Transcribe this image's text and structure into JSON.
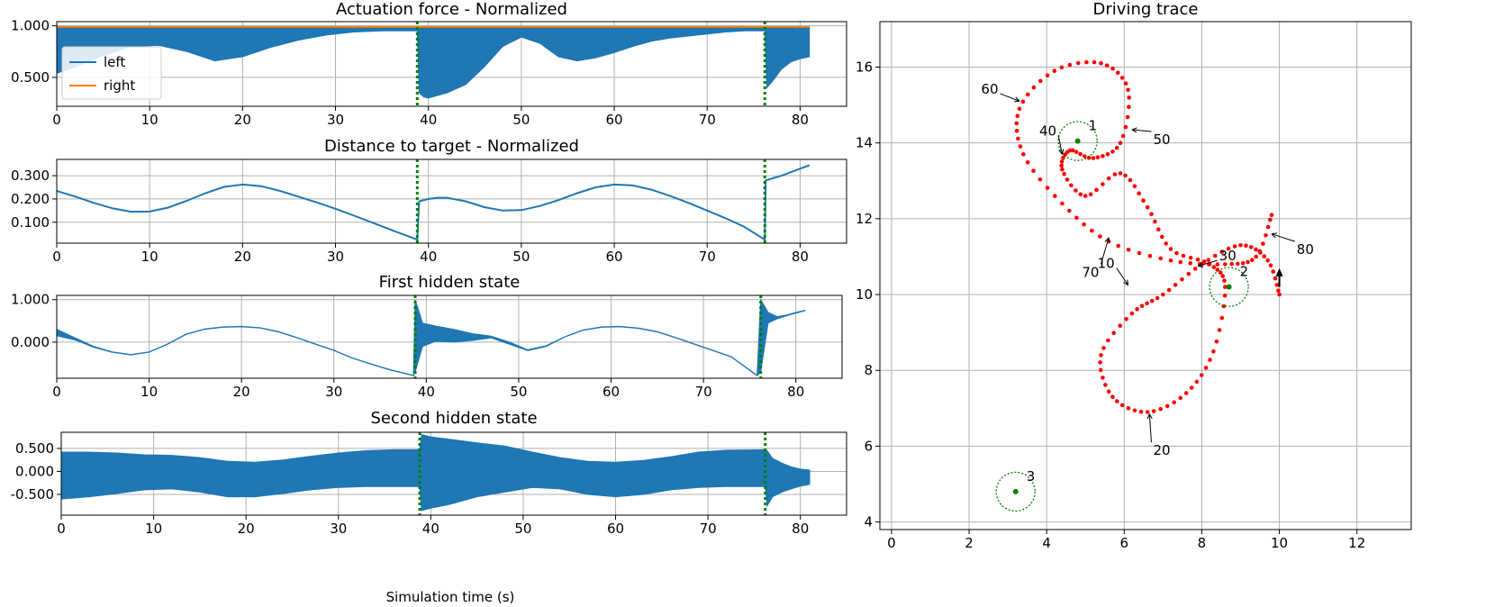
{
  "colors": {
    "left": "#1f77b4",
    "right": "#ff7f0e",
    "phase": "#008000",
    "trace": "#ff0000",
    "target": "#008000"
  },
  "xlabel_time": "Simulation time (s)",
  "chart_data": [
    {
      "type": "line",
      "title": "Actuation force - Normalized",
      "xlim": [
        0,
        85
      ],
      "ylim": [
        0.22,
        1.04
      ],
      "xticks": [
        0,
        10,
        20,
        30,
        40,
        50,
        60,
        70,
        80
      ],
      "yticks": [
        0.5,
        1.0
      ],
      "ytick_labels": [
        "0.500",
        "1.000"
      ],
      "grid": true,
      "legend_placement": "left",
      "phase_lines": [
        38.8,
        76.2
      ],
      "series": [
        {
          "name": "left",
          "kind": "band",
          "x": [
            0,
            2,
            5,
            8,
            11,
            14,
            17,
            20,
            23,
            26,
            29,
            32,
            35,
            38.8,
            39.01,
            39.5,
            40,
            42,
            44,
            46,
            48,
            50,
            52,
            54,
            56,
            58,
            60,
            62,
            64,
            66,
            68,
            70,
            72,
            74,
            76.2,
            76.41,
            77,
            78,
            79,
            80,
            81
          ],
          "low": [
            0.54,
            0.6,
            0.71,
            0.8,
            0.81,
            0.75,
            0.66,
            0.7,
            0.79,
            0.86,
            0.91,
            0.94,
            0.95,
            0.95,
            0.35,
            0.31,
            0.3,
            0.35,
            0.43,
            0.6,
            0.8,
            0.89,
            0.83,
            0.7,
            0.66,
            0.69,
            0.74,
            0.8,
            0.85,
            0.88,
            0.9,
            0.92,
            0.94,
            0.95,
            0.95,
            0.4,
            0.46,
            0.58,
            0.65,
            0.68,
            0.7
          ],
          "high": [
            0.99,
            0.99,
            0.99,
            0.99,
            0.99,
            0.99,
            0.99,
            0.99,
            0.99,
            0.99,
            0.99,
            0.99,
            0.99,
            0.99,
            0.99,
            0.99,
            0.99,
            0.99,
            0.99,
            0.99,
            0.99,
            0.99,
            0.99,
            0.99,
            0.99,
            0.99,
            0.99,
            0.99,
            0.99,
            0.99,
            0.99,
            0.99,
            0.99,
            0.99,
            0.99,
            0.99,
            0.99,
            0.99,
            0.99,
            0.99,
            0.99
          ]
        },
        {
          "name": "right",
          "x": [
            0,
            81
          ],
          "values": [
            0.99,
            0.99
          ]
        }
      ]
    },
    {
      "type": "line",
      "title": "Distance to target - Normalized",
      "xlim": [
        0,
        85
      ],
      "ylim": [
        0.01,
        0.37
      ],
      "xticks": [
        0,
        10,
        20,
        30,
        40,
        50,
        60,
        70,
        80
      ],
      "yticks": [
        0.1,
        0.2,
        0.3
      ],
      "ytick_labels": [
        "0.100",
        "0.200",
        "0.300"
      ],
      "grid": true,
      "phase_lines": [
        38.8,
        76.2
      ],
      "series": [
        {
          "x": [
            0,
            2,
            4,
            6,
            8,
            10,
            12,
            14,
            16,
            18,
            20,
            22,
            24,
            26,
            28,
            30,
            32,
            34,
            36,
            38.8,
            39,
            40,
            41,
            42,
            44,
            46,
            48,
            50,
            52,
            54,
            56,
            58,
            60,
            62,
            64,
            66,
            68,
            70,
            72,
            74,
            76.2,
            76.3,
            78,
            80,
            81
          ],
          "values": [
            0.235,
            0.21,
            0.183,
            0.16,
            0.145,
            0.146,
            0.163,
            0.192,
            0.225,
            0.252,
            0.262,
            0.255,
            0.235,
            0.21,
            0.185,
            0.158,
            0.128,
            0.098,
            0.067,
            0.025,
            0.19,
            0.2,
            0.205,
            0.205,
            0.19,
            0.165,
            0.15,
            0.152,
            0.17,
            0.195,
            0.225,
            0.25,
            0.262,
            0.258,
            0.24,
            0.213,
            0.183,
            0.15,
            0.117,
            0.08,
            0.025,
            0.28,
            0.3,
            0.33,
            0.345
          ]
        }
      ]
    },
    {
      "type": "line",
      "title": "First hidden state",
      "xlim": [
        0,
        85
      ],
      "ylim": [
        -0.85,
        1.1
      ],
      "xticks": [
        0,
        10,
        20,
        30,
        40,
        50,
        60,
        70,
        80
      ],
      "yticks": [
        0.0,
        1.0
      ],
      "ytick_labels": [
        "0.000",
        "1.000"
      ],
      "grid": true,
      "phase_lines": [
        38.8,
        76.2
      ],
      "series": [
        {
          "kind": "band",
          "x": [
            0,
            2,
            4,
            6,
            8,
            10,
            12,
            14,
            16,
            18,
            20,
            22,
            24,
            26,
            28,
            30,
            32,
            34,
            36,
            38.6,
            38.8,
            39.6,
            41,
            43,
            45,
            47,
            49,
            51,
            53,
            55,
            57,
            59,
            61,
            63,
            65,
            67,
            69,
            71,
            73,
            75.8,
            76.2,
            77,
            78,
            79,
            80,
            81
          ],
          "low": [
            0.15,
            0.05,
            -0.12,
            -0.24,
            -0.3,
            -0.24,
            -0.05,
            0.18,
            0.3,
            0.35,
            0.36,
            0.33,
            0.24,
            0.1,
            -0.05,
            -0.2,
            -0.38,
            -0.52,
            -0.65,
            -0.79,
            -0.7,
            -0.1,
            0.02,
            0.0,
            0.04,
            0.1,
            -0.05,
            -0.2,
            -0.1,
            0.12,
            0.28,
            0.35,
            0.36,
            0.32,
            0.24,
            0.1,
            -0.05,
            -0.2,
            -0.35,
            -0.79,
            -0.7,
            0.45,
            0.55,
            0.62,
            0.68,
            0.74
          ],
          "high": [
            0.3,
            0.1,
            -0.1,
            -0.23,
            -0.29,
            -0.23,
            -0.04,
            0.19,
            0.31,
            0.36,
            0.37,
            0.34,
            0.25,
            0.11,
            -0.04,
            -0.19,
            -0.37,
            -0.51,
            -0.64,
            -0.78,
            1.0,
            0.45,
            0.38,
            0.3,
            0.2,
            0.14,
            0.0,
            -0.18,
            -0.08,
            0.13,
            0.29,
            0.36,
            0.37,
            0.33,
            0.25,
            0.11,
            -0.04,
            -0.19,
            -0.34,
            -0.78,
            1.0,
            0.7,
            0.6,
            0.64,
            0.7,
            0.75
          ]
        }
      ]
    },
    {
      "type": "line",
      "title": "Second hidden state",
      "xlabel": "Simulation time (s)",
      "xlim": [
        0,
        85
      ],
      "ylim": [
        -0.95,
        0.85
      ],
      "xticks": [
        0,
        10,
        20,
        30,
        40,
        50,
        60,
        70,
        80
      ],
      "yticks": [
        -0.5,
        0.0,
        0.5
      ],
      "ytick_labels": [
        "-0.500",
        "0.000",
        "0.500"
      ],
      "grid": true,
      "phase_lines": [
        38.8,
        76.2
      ],
      "series": [
        {
          "kind": "band",
          "x": [
            0,
            3,
            6,
            9,
            12,
            15,
            18,
            21,
            24,
            27,
            30,
            33,
            36,
            38.8,
            39,
            40,
            42,
            45,
            48,
            51,
            54,
            57,
            60,
            63,
            66,
            69,
            72,
            76.2,
            76.4,
            77,
            78,
            79,
            80,
            81
          ],
          "low": [
            -0.6,
            -0.55,
            -0.48,
            -0.4,
            -0.38,
            -0.45,
            -0.55,
            -0.55,
            -0.48,
            -0.4,
            -0.35,
            -0.33,
            -0.33,
            -0.33,
            -0.85,
            -0.8,
            -0.72,
            -0.55,
            -0.45,
            -0.35,
            -0.38,
            -0.5,
            -0.55,
            -0.5,
            -0.4,
            -0.35,
            -0.33,
            -0.33,
            -0.75,
            -0.55,
            -0.45,
            -0.38,
            -0.32,
            -0.28
          ],
          "high": [
            0.42,
            0.42,
            0.4,
            0.36,
            0.35,
            0.3,
            0.22,
            0.2,
            0.25,
            0.33,
            0.4,
            0.45,
            0.47,
            0.47,
            0.8,
            0.75,
            0.7,
            0.62,
            0.55,
            0.42,
            0.3,
            0.22,
            0.2,
            0.24,
            0.32,
            0.42,
            0.46,
            0.47,
            0.45,
            0.28,
            0.18,
            0.1,
            0.05,
            0.03
          ]
        }
      ]
    },
    {
      "type": "scatter",
      "title": "Driving trace",
      "xlim": [
        -0.3,
        13.4
      ],
      "ylim": [
        3.8,
        17.2
      ],
      "xticks": [
        0,
        2,
        4,
        6,
        8,
        10,
        12
      ],
      "yticks": [
        4,
        6,
        8,
        10,
        12,
        14,
        16
      ],
      "grid": true,
      "trace_control": [
        [
          10.0,
          10.0
        ],
        [
          9.7,
          10.9
        ],
        [
          9.0,
          11.3
        ],
        [
          8.0,
          10.8
        ],
        [
          7.0,
          10.0
        ],
        [
          6.2,
          9.5
        ],
        [
          5.4,
          8.4
        ],
        [
          5.7,
          7.3
        ],
        [
          6.6,
          6.9
        ],
        [
          7.6,
          7.4
        ],
        [
          8.3,
          8.5
        ],
        [
          8.6,
          10.2
        ],
        [
          8.2,
          10.8
        ],
        [
          7.2,
          11.2
        ],
        [
          6.6,
          12.3
        ],
        [
          5.9,
          13.2
        ],
        [
          5.0,
          12.6
        ],
        [
          4.4,
          13.3
        ],
        [
          4.6,
          13.8
        ],
        [
          5.2,
          13.6
        ],
        [
          5.9,
          14.0
        ],
        [
          6.1,
          15.4
        ],
        [
          5.4,
          16.1
        ],
        [
          4.2,
          15.9
        ],
        [
          3.3,
          14.9
        ],
        [
          3.4,
          13.7
        ],
        [
          4.4,
          12.4
        ],
        [
          5.6,
          11.4
        ],
        [
          7.2,
          10.9
        ],
        [
          8.6,
          10.8
        ],
        [
          9.4,
          11.0
        ],
        [
          9.8,
          12.1
        ]
      ],
      "targets": [
        {
          "label": "1",
          "x": 4.8,
          "y": 14.05,
          "r": 0.5
        },
        {
          "label": "2",
          "x": 8.7,
          "y": 10.2,
          "r": 0.5
        },
        {
          "label": "3",
          "x": 3.2,
          "y": 4.8,
          "r": 0.5
        }
      ],
      "time_annotations": [
        {
          "label": "10",
          "px": 6.1,
          "py": 10.25,
          "tx": 5.8,
          "ty": 10.7
        },
        {
          "label": "20",
          "px": 6.65,
          "py": 6.85,
          "tx": 6.7,
          "ty": 6.1
        },
        {
          "label": "30",
          "px": 7.9,
          "py": 10.75,
          "tx": 8.4,
          "ty": 10.9
        },
        {
          "label": "40",
          "px": 4.4,
          "py": 13.7,
          "tx": 4.3,
          "ty": 14.2
        },
        {
          "label": "50",
          "px": 6.2,
          "py": 14.35,
          "tx": 6.7,
          "ty": 14.3
        },
        {
          "label": "60",
          "px": 3.3,
          "py": 15.1,
          "tx": 2.8,
          "ty": 15.3
        },
        {
          "label": "70",
          "px": 5.6,
          "py": 11.5,
          "tx": 5.4,
          "ty": 10.8
        },
        {
          "label": "80",
          "px": 9.8,
          "py": 11.6,
          "tx": 10.4,
          "ty": 11.4
        }
      ],
      "end_arrow": {
        "x": 10.0,
        "y": 10.2,
        "dx": 0.0,
        "dy": 0.35
      }
    }
  ]
}
